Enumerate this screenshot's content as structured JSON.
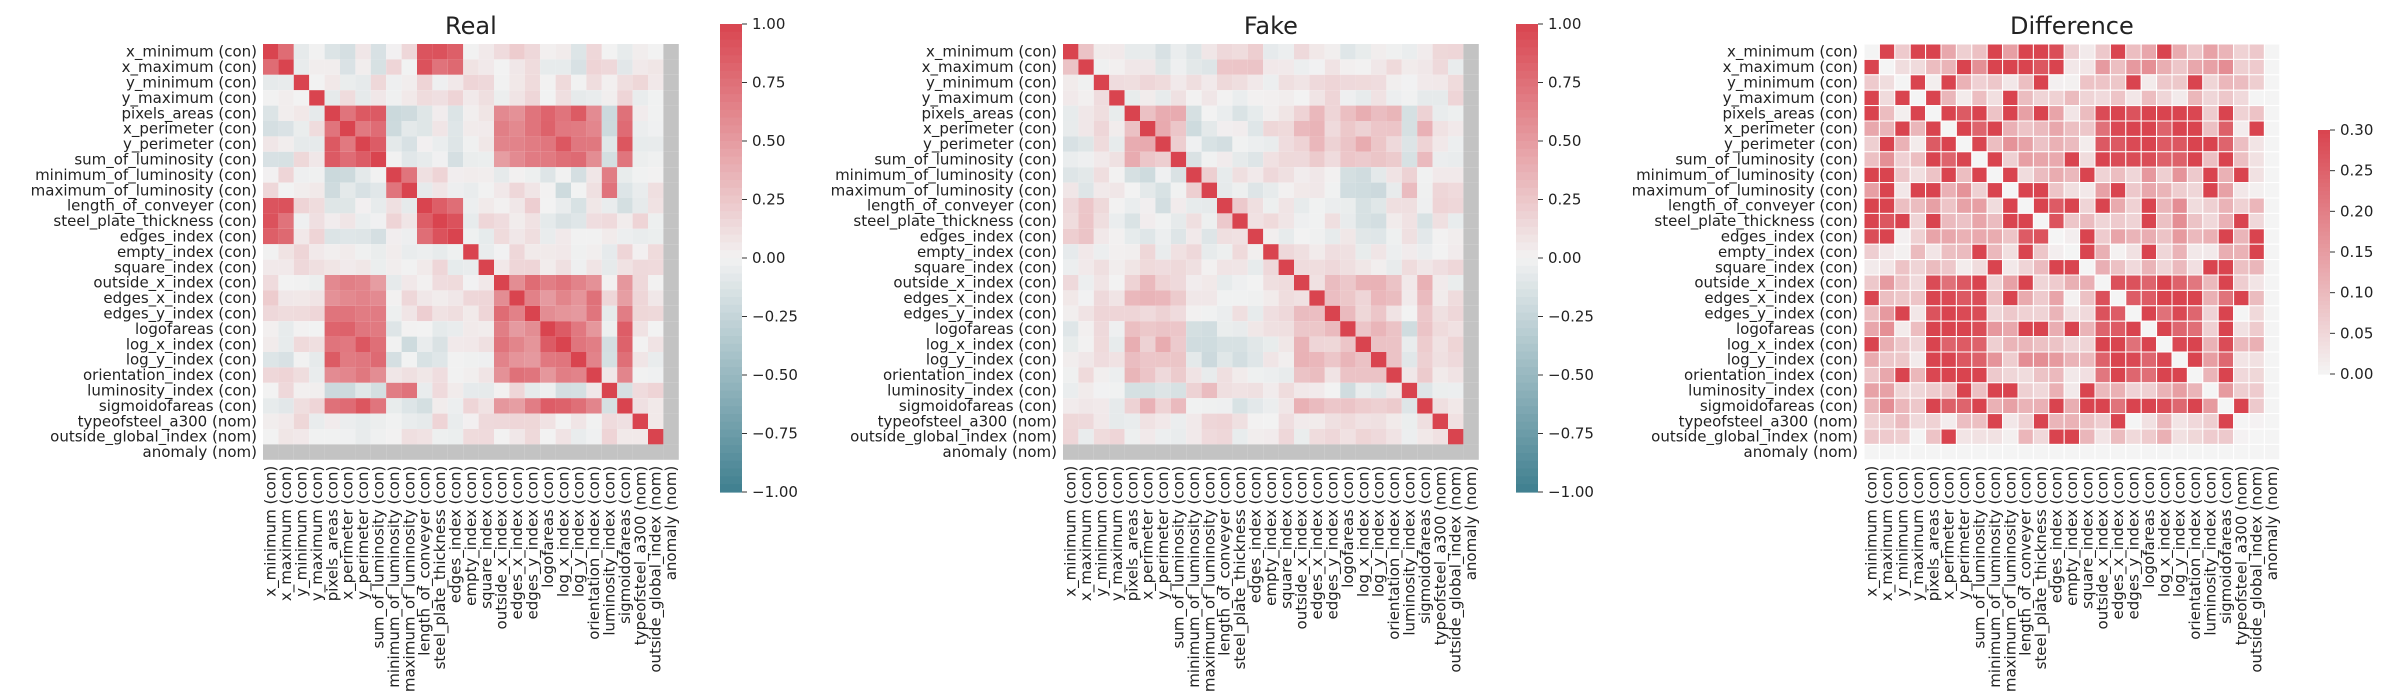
{
  "chart_data": [
    {
      "type": "heatmap",
      "title": "Real",
      "labels": [
        "x_minimum (con)",
        "x_maximum (con)",
        "y_minimum (con)",
        "y_maximum (con)",
        "pixels_areas (con)",
        "x_perimeter (con)",
        "y_perimeter (con)",
        "sum_of_luminosity (con)",
        "minimum_of_luminosity (con)",
        "maximum_of_luminosity (con)",
        "length_of_conveyer (con)",
        "steel_plate_thickness (con)",
        "edges_index (con)",
        "empty_index (con)",
        "square_index (con)",
        "outside_x_index (con)",
        "edges_x_index (con)",
        "edges_y_index (con)",
        "logofareas (con)",
        "log_x_index (con)",
        "log_y_index (con)",
        "orientation_index (con)",
        "luminosity_index (con)",
        "sigmoidofareas (con)",
        "typeofsteel_a300 (nom)",
        "outside_global_index (nom)",
        "anomaly (nom)"
      ],
      "colorbar": {
        "min": -1.0,
        "max": 1.0,
        "ticks": [
          "1.00",
          "0.75",
          "0.50",
          "0.25",
          "0.00",
          "−0.25",
          "−0.50",
          "−0.75",
          "−1.00"
        ]
      },
      "color_low": "#3f7f8f",
      "color_mid": "#f2f2f2",
      "color_high": "#d9444f",
      "nan_color": "#c3c3c3",
      "groups": [
        [
          0,
          1,
          10,
          11,
          12
        ],
        [
          4,
          5,
          6,
          7,
          18,
          19,
          20,
          23
        ],
        [
          8,
          9,
          22
        ],
        [
          15,
          16,
          17,
          21
        ]
      ],
      "group_values": [
        [
          0.85,
          -0.05,
          0.05,
          0.1
        ],
        [
          -0.05,
          0.8,
          -0.1,
          0.6
        ],
        [
          0.05,
          -0.1,
          0.75,
          0.05
        ],
        [
          0.1,
          0.6,
          0.05,
          0.65
        ]
      ],
      "diag": 1.0,
      "nan_index": 26
    },
    {
      "type": "heatmap",
      "title": "Fake",
      "labels": [
        "x_minimum (con)",
        "x_maximum (con)",
        "y_minimum (con)",
        "y_maximum (con)",
        "pixels_areas (con)",
        "x_perimeter (con)",
        "y_perimeter (con)",
        "sum_of_luminosity (con)",
        "minimum_of_luminosity (con)",
        "maximum_of_luminosity (con)",
        "length_of_conveyer (con)",
        "steel_plate_thickness (con)",
        "edges_index (con)",
        "empty_index (con)",
        "square_index (con)",
        "outside_x_index (con)",
        "edges_x_index (con)",
        "edges_y_index (con)",
        "logofareas (con)",
        "log_x_index (con)",
        "log_y_index (con)",
        "orientation_index (con)",
        "luminosity_index (con)",
        "sigmoidofareas (con)",
        "typeofsteel_a300 (nom)",
        "outside_global_index (nom)",
        "anomaly (nom)"
      ],
      "colorbar": {
        "min": -1.0,
        "max": 1.0,
        "ticks": [
          "1.00",
          "0.75",
          "0.50",
          "0.25",
          "0.00",
          "−0.25",
          "−0.50",
          "−0.75",
          "−1.00"
        ]
      },
      "color_low": "#3f7f8f",
      "color_mid": "#f2f2f2",
      "color_high": "#d9444f",
      "nan_color": "#c3c3c3",
      "groups": [
        [
          0,
          1,
          10,
          11,
          12
        ],
        [
          4,
          5,
          6,
          7,
          18,
          19,
          20,
          23
        ],
        [
          8,
          9,
          22
        ],
        [
          15,
          16,
          17,
          21
        ]
      ],
      "group_values": [
        [
          0.15,
          -0.05,
          0.0,
          0.05
        ],
        [
          -0.05,
          0.3,
          -0.1,
          0.25
        ],
        [
          0.0,
          -0.1,
          0.25,
          0.0
        ],
        [
          0.05,
          0.25,
          0.0,
          0.2
        ]
      ],
      "diag": 1.0,
      "nan_index": 26
    },
    {
      "type": "heatmap",
      "title": "Difference",
      "labels": [
        "x_minimum (con)",
        "x_maximum (con)",
        "y_minimum (con)",
        "y_maximum (con)",
        "pixels_areas (con)",
        "x_perimeter (con)",
        "y_perimeter (con)",
        "sum_of_luminosity (con)",
        "minimum_of_luminosity (con)",
        "maximum_of_luminosity (con)",
        "length_of_conveyer (con)",
        "steel_plate_thickness (con)",
        "edges_index (con)",
        "empty_index (con)",
        "square_index (con)",
        "outside_x_index (con)",
        "edges_x_index (con)",
        "edges_y_index (con)",
        "logofareas (con)",
        "log_x_index (con)",
        "log_y_index (con)",
        "orientation_index (con)",
        "luminosity_index (con)",
        "sigmoidofareas (con)",
        "typeofsteel_a300 (nom)",
        "outside_global_index (nom)",
        "anomaly (nom)"
      ],
      "colorbar": {
        "min": 0.0,
        "max": 0.3,
        "ticks": [
          "0.30",
          "0.25",
          "0.20",
          "0.15",
          "0.10",
          "0.05",
          "0.00"
        ]
      },
      "color_low": "#f4f4f4",
      "color_high": "#d9444f",
      "nan_color": "#f4f4f4",
      "groups": [
        [
          0,
          1,
          10,
          11,
          12
        ],
        [
          4,
          5,
          6,
          7,
          18,
          19,
          20,
          23
        ],
        [
          8,
          9,
          22
        ],
        [
          15,
          16,
          17,
          21
        ]
      ],
      "group_values": [
        [
          0.3,
          0.12,
          0.1,
          0.1
        ],
        [
          0.12,
          0.3,
          0.12,
          0.28
        ],
        [
          0.1,
          0.12,
          0.3,
          0.1
        ],
        [
          0.1,
          0.28,
          0.1,
          0.25
        ]
      ],
      "diag": 0.0,
      "nan_index": 26
    }
  ]
}
